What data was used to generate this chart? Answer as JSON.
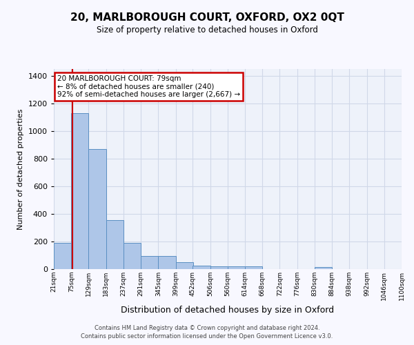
{
  "title": "20, MARLBOROUGH COURT, OXFORD, OX2 0QT",
  "subtitle": "Size of property relative to detached houses in Oxford",
  "xlabel": "Distribution of detached houses by size in Oxford",
  "ylabel": "Number of detached properties",
  "bin_labels": [
    "21sqm",
    "75sqm",
    "129sqm",
    "183sqm",
    "237sqm",
    "291sqm",
    "345sqm",
    "399sqm",
    "452sqm",
    "506sqm",
    "560sqm",
    "614sqm",
    "668sqm",
    "722sqm",
    "776sqm",
    "830sqm",
    "884sqm",
    "938sqm",
    "992sqm",
    "1046sqm",
    "1100sqm"
  ],
  "bin_edges": [
    21,
    75,
    129,
    183,
    237,
    291,
    345,
    399,
    452,
    506,
    560,
    614,
    668,
    722,
    776,
    830,
    884,
    938,
    992,
    1046,
    1100
  ],
  "bar_heights": [
    190,
    1130,
    870,
    355,
    190,
    95,
    95,
    50,
    25,
    20,
    20,
    20,
    0,
    0,
    0,
    15,
    0,
    0,
    0,
    0,
    0
  ],
  "bar_color": "#aec6e8",
  "bar_edge_color": "#5a8fc2",
  "red_line_x": 79,
  "annotation_text": "20 MARLBOROUGH COURT: 79sqm\n← 8% of detached houses are smaller (240)\n92% of semi-detached houses are larger (2,667) →",
  "annotation_box_color": "#ffffff",
  "annotation_border_color": "#cc0000",
  "ylim": [
    0,
    1450
  ],
  "yticks": [
    0,
    200,
    400,
    600,
    800,
    1000,
    1200,
    1400
  ],
  "grid_color": "#d0d8e8",
  "bg_color": "#eef2fa",
  "fig_bg_color": "#f8f8ff",
  "footer_line1": "Contains HM Land Registry data © Crown copyright and database right 2024.",
  "footer_line2": "Contains public sector information licensed under the Open Government Licence v3.0."
}
